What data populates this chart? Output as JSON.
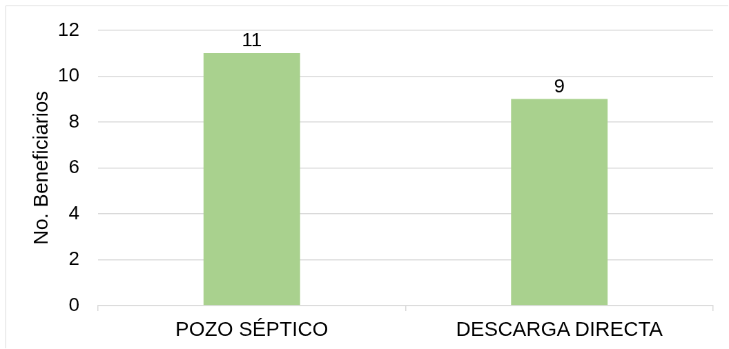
{
  "chart_data": {
    "type": "bar",
    "ylabel": "No. Beneficiarios",
    "categories": [
      "POZO SÉPTICO",
      "DESCARGA DIRECTA"
    ],
    "values": [
      11,
      9
    ],
    "color": "#a9d18e",
    "ylim": [
      0,
      12
    ],
    "yticks": [
      0,
      2,
      4,
      6,
      8,
      10,
      12
    ],
    "grid": "y",
    "data_labels": true
  }
}
